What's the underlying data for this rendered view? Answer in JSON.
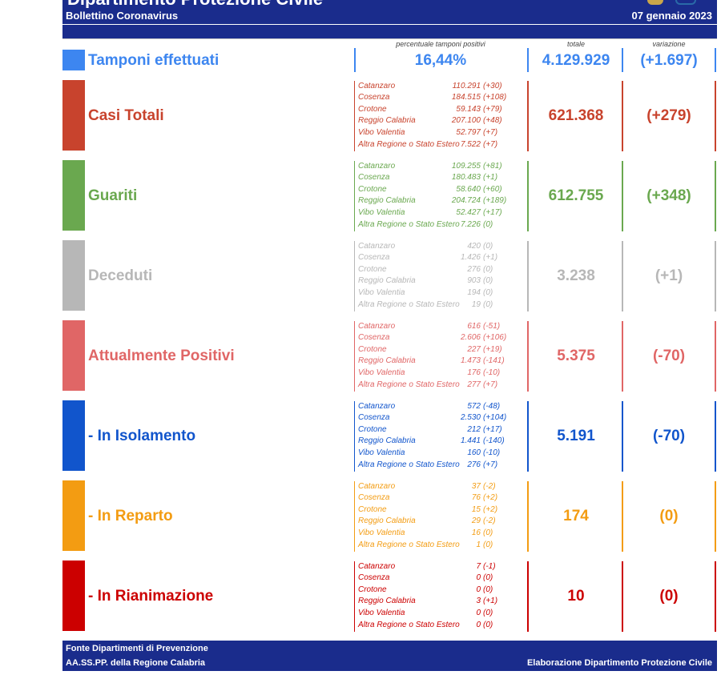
{
  "header": {
    "title_partial": "Dipartimento Protezione Civile",
    "bulletin": "Bollettino Coronavirus",
    "date": "07 gennaio 2023"
  },
  "columns": {
    "percent_label": "percentuale tamponi positivi",
    "total_label": "totale",
    "change_label": "variazione"
  },
  "tamponi": {
    "label": "Tamponi effettuati",
    "percent": "16,44%",
    "total": "4.129.929",
    "change": "(+1.697)",
    "color": "#3d86f0"
  },
  "sections": [
    {
      "label": "Casi Totali",
      "color": "#c8432d",
      "total": "621.368",
      "change": "(+279)",
      "provinces": [
        {
          "name": "Catanzaro",
          "value": "110.291",
          "delta": "(+30)"
        },
        {
          "name": "Cosenza",
          "value": "184.515",
          "delta": "(+108)"
        },
        {
          "name": "Crotone",
          "value": "59.143",
          "delta": "(+79)"
        },
        {
          "name": "Reggio Calabria",
          "value": "207.100",
          "delta": "(+48)"
        },
        {
          "name": "Vibo Valentia",
          "value": "52.797",
          "delta": "(+7)"
        },
        {
          "name": "Altra Regione o Stato Estero",
          "value": "7.522",
          "delta": "(+7)"
        }
      ]
    },
    {
      "label": "Guariti",
      "color": "#6aa84f",
      "total": "612.755",
      "change": "(+348)",
      "provinces": [
        {
          "name": "Catanzaro",
          "value": "109.255",
          "delta": "(+81)"
        },
        {
          "name": "Cosenza",
          "value": "180.483",
          "delta": "(+1)"
        },
        {
          "name": "Crotone",
          "value": "58.640",
          "delta": "(+60)"
        },
        {
          "name": "Reggio Calabria",
          "value": "204.724",
          "delta": "(+189)"
        },
        {
          "name": "Vibo Valentia",
          "value": "52.427",
          "delta": "(+17)"
        },
        {
          "name": "Altra Regione o Stato Estero",
          "value": "7.226",
          "delta": "(0)"
        }
      ]
    },
    {
      "label": "Deceduti",
      "color": "#b7b7b7",
      "total": "3.238",
      "change": "(+1)",
      "provinces": [
        {
          "name": "Catanzaro",
          "value": "420",
          "delta": "(0)"
        },
        {
          "name": "Cosenza",
          "value": "1.426",
          "delta": "(+1)"
        },
        {
          "name": "Crotone",
          "value": "276",
          "delta": "(0)"
        },
        {
          "name": "Reggio Calabria",
          "value": "903",
          "delta": "(0)"
        },
        {
          "name": "Vibo Valentia",
          "value": "194",
          "delta": "(0)"
        },
        {
          "name": "Altra Regione o Stato Estero",
          "value": "19",
          "delta": "(0)"
        }
      ]
    },
    {
      "label": "Attualmente Positivi",
      "color": "#e06666",
      "total": "5.375",
      "change": "(-70)",
      "provinces": [
        {
          "name": "Catanzaro",
          "value": "616",
          "delta": "(-51)"
        },
        {
          "name": "Cosenza",
          "value": "2.606",
          "delta": "(+106)"
        },
        {
          "name": "Crotone",
          "value": "227",
          "delta": "(+19)"
        },
        {
          "name": "Reggio Calabria",
          "value": "1.473",
          "delta": "(-141)"
        },
        {
          "name": "Vibo Valentia",
          "value": "176",
          "delta": "(-10)"
        },
        {
          "name": "Altra Regione o Stato Estero",
          "value": "277",
          "delta": "(+7)"
        }
      ]
    },
    {
      "label": "- In Isolamento",
      "color": "#1155cc",
      "total": "5.191",
      "change": "(-70)",
      "provinces": [
        {
          "name": "Catanzaro",
          "value": "572",
          "delta": "(-48)"
        },
        {
          "name": "Cosenza",
          "value": "2.530",
          "delta": "(+104)"
        },
        {
          "name": "Crotone",
          "value": "212",
          "delta": "(+17)"
        },
        {
          "name": "Reggio Calabria",
          "value": "1.441",
          "delta": "(-140)"
        },
        {
          "name": "Vibo Valentia",
          "value": "160",
          "delta": "(-10)"
        },
        {
          "name": "Altra Regione o Stato Estero",
          "value": "276",
          "delta": "(+7)"
        }
      ]
    },
    {
      "label": "- In Reparto",
      "color": "#f39c12",
      "total": "174",
      "change": "(0)",
      "provinces": [
        {
          "name": "Catanzaro",
          "value": "37",
          "delta": "(-2)"
        },
        {
          "name": "Cosenza",
          "value": "76",
          "delta": "(+2)"
        },
        {
          "name": "Crotone",
          "value": "15",
          "delta": "(+2)"
        },
        {
          "name": "Reggio Calabria",
          "value": "29",
          "delta": "(-2)"
        },
        {
          "name": "Vibo Valentia",
          "value": "16",
          "delta": "(0)"
        },
        {
          "name": "Altra Regione o Stato Estero",
          "value": "1",
          "delta": "(0)"
        }
      ]
    },
    {
      "label": "- In Rianimazione",
      "color": "#cc0000",
      "total": "10",
      "change": "(0)",
      "provinces": [
        {
          "name": "Catanzaro",
          "value": "7",
          "delta": "(-1)"
        },
        {
          "name": "Cosenza",
          "value": "0",
          "delta": "(0)"
        },
        {
          "name": "Crotone",
          "value": "0",
          "delta": "(0)"
        },
        {
          "name": "Reggio Calabria",
          "value": "3",
          "delta": "(+1)"
        },
        {
          "name": "Vibo Valentia",
          "value": "0",
          "delta": "(0)"
        },
        {
          "name": "Altra Regione o Stato Estero",
          "value": "0",
          "delta": "(0)"
        }
      ]
    }
  ],
  "footer": {
    "source_line1": "Fonte Dipartimenti di Prevenzione",
    "source_line2": "AA.SS.PP.  della Regione Calabria",
    "credit": "Elaborazione Dipartimento Protezione Civile"
  }
}
